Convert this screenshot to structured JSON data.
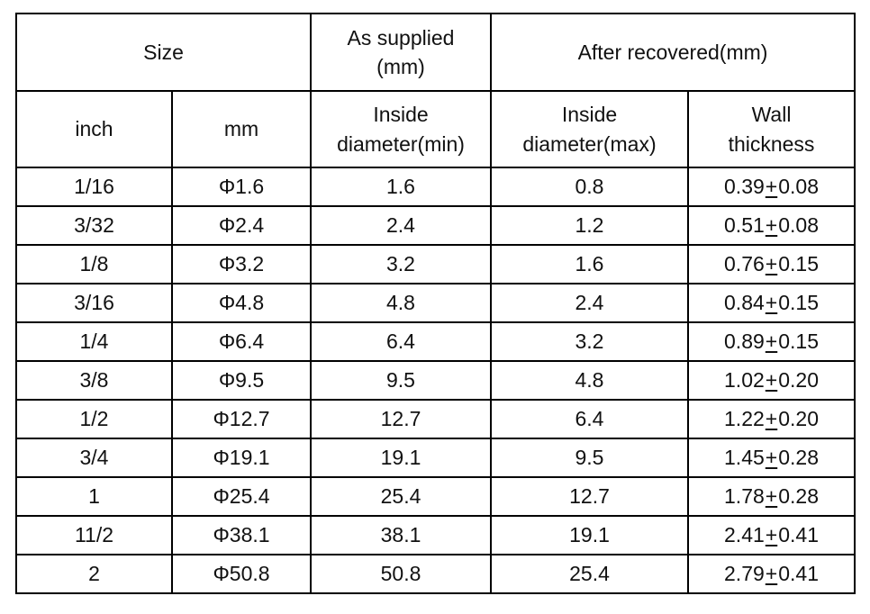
{
  "table": {
    "border_color": "#000000",
    "text_color": "#111111",
    "header": {
      "size": "Size",
      "as_supplied": "As supplied\n(mm)",
      "after_recovered": "After recovered(mm)",
      "inch": "inch",
      "mm": "mm",
      "inside_diameter_min": "Inside\ndiameter(min)",
      "inside_diameter_max": "Inside\ndiameter(max)",
      "wall_thickness": "Wall\nthickness"
    },
    "pm_symbol": "+",
    "rows": [
      {
        "inch": "1/16",
        "mm": "Φ1.6",
        "inside_min": "1.6",
        "inside_max": "0.8",
        "wall_base": "0.39",
        "wall_tol": "0.08"
      },
      {
        "inch": "3/32",
        "mm": "Φ2.4",
        "inside_min": "2.4",
        "inside_max": "1.2",
        "wall_base": "0.51",
        "wall_tol": "0.08"
      },
      {
        "inch": "1/8",
        "mm": "Φ3.2",
        "inside_min": "3.2",
        "inside_max": "1.6",
        "wall_base": "0.76",
        "wall_tol": "0.15"
      },
      {
        "inch": "3/16",
        "mm": "Φ4.8",
        "inside_min": "4.8",
        "inside_max": "2.4",
        "wall_base": "0.84",
        "wall_tol": "0.15"
      },
      {
        "inch": "1/4",
        "mm": "Φ6.4",
        "inside_min": "6.4",
        "inside_max": "3.2",
        "wall_base": "0.89",
        "wall_tol": "0.15"
      },
      {
        "inch": "3/8",
        "mm": "Φ9.5",
        "inside_min": "9.5",
        "inside_max": "4.8",
        "wall_base": "1.02",
        "wall_tol": "0.20"
      },
      {
        "inch": "1/2",
        "mm": "Φ12.7",
        "inside_min": "12.7",
        "inside_max": "6.4",
        "wall_base": "1.22",
        "wall_tol": "0.20"
      },
      {
        "inch": "3/4",
        "mm": "Φ19.1",
        "inside_min": "19.1",
        "inside_max": "9.5",
        "wall_base": "1.45",
        "wall_tol": "0.28"
      },
      {
        "inch": "1",
        "mm": "Φ25.4",
        "inside_min": "25.4",
        "inside_max": "12.7",
        "wall_base": "1.78",
        "wall_tol": "0.28"
      },
      {
        "inch": "11/2",
        "mm": "Φ38.1",
        "inside_min": "38.1",
        "inside_max": "19.1",
        "wall_base": "2.41",
        "wall_tol": "0.41"
      },
      {
        "inch": "2",
        "mm": "Φ50.8",
        "inside_min": "50.8",
        "inside_max": "25.4",
        "wall_base": "2.79",
        "wall_tol": "0.41"
      }
    ]
  }
}
